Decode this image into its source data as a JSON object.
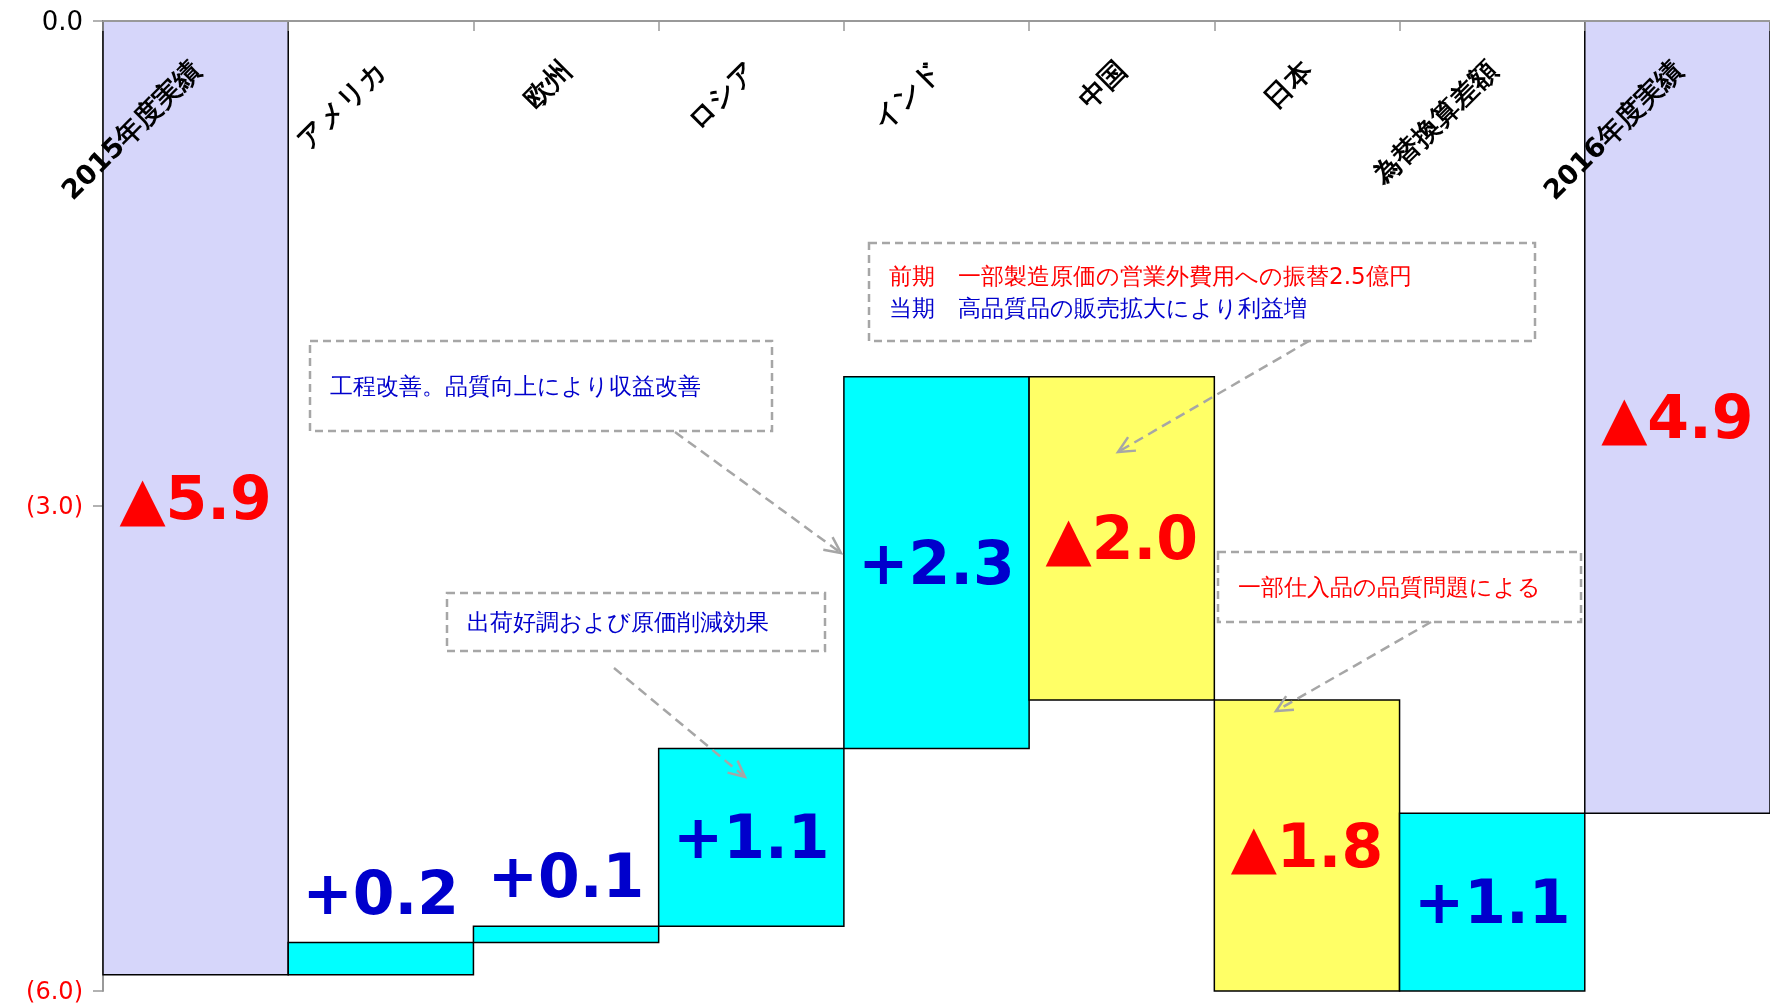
{
  "chart_data": {
    "type": "bar",
    "categories": [
      "2015年度実績",
      "アメリカ",
      "欧州",
      "ロシア",
      "インド",
      "中国",
      "日本",
      "為替換算差額",
      "2016年度実績"
    ],
    "values": [
      -5.9,
      0.2,
      0.1,
      1.1,
      2.3,
      -2.0,
      -1.8,
      1.1,
      -4.9
    ],
    "base": [
      0,
      -5.9,
      -5.7,
      -5.6,
      -4.5,
      -2.2,
      -4.2,
      -6.0,
      0
    ],
    "colors": [
      "#d6d6fa",
      "#00ffff",
      "#00ffff",
      "#00ffff",
      "#00ffff",
      "#ffff66",
      "#ffff66",
      "#00ffff",
      "#d6d6fa"
    ],
    "value_labels": [
      "▲5.9",
      "+0.2",
      "+0.1",
      "+1.1",
      "+2.3",
      "▲2.0",
      "▲1.8",
      "+1.1",
      "▲4.9"
    ],
    "ylim": [
      -6,
      0
    ],
    "yticks": [
      {
        "value": 0,
        "label": "0.0"
      },
      {
        "value": -3,
        "label": "(3.0)"
      },
      {
        "value": -6,
        "label": "(6.0)"
      }
    ],
    "grid": false,
    "annotations": [
      "工程改善。品質向上により収益改善",
      "出荷好調および原価削減効果",
      "前期　一部製造原価の営業外費用への振替2.5億円",
      "当期　高品質品の販売拡大により利益増",
      "一部仕入品の品質問題による"
    ]
  }
}
